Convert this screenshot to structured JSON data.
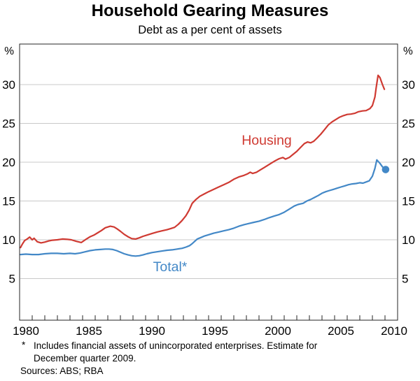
{
  "chart": {
    "title": "Household Gearing Measures",
    "subtitle": "Debt as a per cent of assets",
    "unit_left": "%",
    "unit_right": "%"
  },
  "chart_data": {
    "type": "line",
    "title": "Household Gearing Measures",
    "subtitle": "Debt as a per cent of assets",
    "ylabel": "%",
    "x_range": [
      1980,
      2010
    ],
    "ylim": [
      0,
      35
    ],
    "y_gridlines": [
      5,
      10,
      15,
      20,
      25,
      30
    ],
    "x_tick_labels": [
      "1980",
      "1985",
      "1990",
      "1995",
      "2000",
      "2005",
      "2010"
    ],
    "grid": true,
    "legend_position": "inline-labels",
    "series": [
      {
        "name": "Housing",
        "color": "#cf3a32",
        "points": [
          [
            1980.07,
            9.0
          ],
          [
            1980.2,
            9.4
          ],
          [
            1980.4,
            9.9
          ],
          [
            1980.6,
            10.1
          ],
          [
            1980.8,
            10.35
          ],
          [
            1981.0,
            10.0
          ],
          [
            1981.15,
            10.2
          ],
          [
            1981.4,
            9.75
          ],
          [
            1981.7,
            9.6
          ],
          [
            1982.0,
            9.7
          ],
          [
            1982.3,
            9.85
          ],
          [
            1982.6,
            9.95
          ],
          [
            1983.0,
            10.0
          ],
          [
            1983.4,
            10.1
          ],
          [
            1983.8,
            10.05
          ],
          [
            1984.1,
            10.0
          ],
          [
            1984.5,
            9.8
          ],
          [
            1984.9,
            9.65
          ],
          [
            1985.3,
            10.1
          ],
          [
            1985.6,
            10.4
          ],
          [
            1985.9,
            10.6
          ],
          [
            1986.2,
            10.9
          ],
          [
            1986.5,
            11.2
          ],
          [
            1986.8,
            11.55
          ],
          [
            1987.0,
            11.65
          ],
          [
            1987.2,
            11.75
          ],
          [
            1987.5,
            11.65
          ],
          [
            1987.7,
            11.45
          ],
          [
            1988.0,
            11.1
          ],
          [
            1988.3,
            10.7
          ],
          [
            1988.6,
            10.4
          ],
          [
            1988.9,
            10.15
          ],
          [
            1989.2,
            10.1
          ],
          [
            1989.5,
            10.25
          ],
          [
            1989.8,
            10.45
          ],
          [
            1990.1,
            10.6
          ],
          [
            1990.5,
            10.8
          ],
          [
            1990.9,
            11.0
          ],
          [
            1991.3,
            11.15
          ],
          [
            1991.7,
            11.3
          ],
          [
            1992.0,
            11.45
          ],
          [
            1992.3,
            11.6
          ],
          [
            1992.6,
            12.0
          ],
          [
            1992.9,
            12.5
          ],
          [
            1993.2,
            13.1
          ],
          [
            1993.45,
            13.8
          ],
          [
            1993.7,
            14.7
          ],
          [
            1994.0,
            15.2
          ],
          [
            1994.3,
            15.6
          ],
          [
            1994.7,
            15.95
          ],
          [
            1995.0,
            16.2
          ],
          [
            1995.4,
            16.5
          ],
          [
            1995.8,
            16.8
          ],
          [
            1996.2,
            17.1
          ],
          [
            1996.6,
            17.4
          ],
          [
            1997.0,
            17.8
          ],
          [
            1997.4,
            18.1
          ],
          [
            1997.8,
            18.3
          ],
          [
            1998.1,
            18.5
          ],
          [
            1998.3,
            18.7
          ],
          [
            1998.5,
            18.55
          ],
          [
            1998.8,
            18.7
          ],
          [
            1999.1,
            19.0
          ],
          [
            1999.4,
            19.3
          ],
          [
            1999.7,
            19.6
          ],
          [
            2000.0,
            19.9
          ],
          [
            2000.3,
            20.2
          ],
          [
            2000.6,
            20.45
          ],
          [
            2000.9,
            20.6
          ],
          [
            2001.1,
            20.4
          ],
          [
            2001.4,
            20.6
          ],
          [
            2001.7,
            21.0
          ],
          [
            2002.0,
            21.4
          ],
          [
            2002.3,
            21.9
          ],
          [
            2002.6,
            22.4
          ],
          [
            2002.85,
            22.6
          ],
          [
            2003.1,
            22.5
          ],
          [
            2003.35,
            22.7
          ],
          [
            2003.6,
            23.1
          ],
          [
            2003.9,
            23.6
          ],
          [
            2004.2,
            24.2
          ],
          [
            2004.5,
            24.8
          ],
          [
            2004.8,
            25.2
          ],
          [
            2005.1,
            25.5
          ],
          [
            2005.4,
            25.8
          ],
          [
            2005.7,
            26.0
          ],
          [
            2006.0,
            26.15
          ],
          [
            2006.3,
            26.2
          ],
          [
            2006.6,
            26.3
          ],
          [
            2006.9,
            26.5
          ],
          [
            2007.2,
            26.6
          ],
          [
            2007.5,
            26.65
          ],
          [
            2007.8,
            26.9
          ],
          [
            2008.0,
            27.3
          ],
          [
            2008.2,
            28.4
          ],
          [
            2008.3,
            29.6
          ],
          [
            2008.45,
            31.2
          ],
          [
            2008.6,
            30.9
          ],
          [
            2008.8,
            30.0
          ],
          [
            2008.95,
            29.4
          ]
        ]
      },
      {
        "name": "Total*",
        "color": "#4388c7",
        "points": [
          [
            1980.07,
            8.1
          ],
          [
            1980.5,
            8.15
          ],
          [
            1981.0,
            8.1
          ],
          [
            1981.5,
            8.1
          ],
          [
            1982.0,
            8.2
          ],
          [
            1982.5,
            8.25
          ],
          [
            1983.0,
            8.25
          ],
          [
            1983.5,
            8.2
          ],
          [
            1984.0,
            8.25
          ],
          [
            1984.4,
            8.2
          ],
          [
            1984.8,
            8.3
          ],
          [
            1985.2,
            8.45
          ],
          [
            1985.6,
            8.6
          ],
          [
            1986.0,
            8.7
          ],
          [
            1986.4,
            8.75
          ],
          [
            1986.8,
            8.8
          ],
          [
            1987.1,
            8.8
          ],
          [
            1987.4,
            8.75
          ],
          [
            1987.7,
            8.6
          ],
          [
            1988.0,
            8.4
          ],
          [
            1988.3,
            8.2
          ],
          [
            1988.6,
            8.05
          ],
          [
            1988.9,
            7.95
          ],
          [
            1989.2,
            7.9
          ],
          [
            1989.5,
            7.95
          ],
          [
            1989.8,
            8.05
          ],
          [
            1990.1,
            8.2
          ],
          [
            1990.5,
            8.35
          ],
          [
            1990.9,
            8.45
          ],
          [
            1991.3,
            8.55
          ],
          [
            1991.7,
            8.65
          ],
          [
            1992.1,
            8.7
          ],
          [
            1992.5,
            8.8
          ],
          [
            1992.9,
            8.9
          ],
          [
            1993.2,
            9.05
          ],
          [
            1993.5,
            9.25
          ],
          [
            1993.7,
            9.5
          ],
          [
            1993.9,
            9.8
          ],
          [
            1994.1,
            10.1
          ],
          [
            1994.4,
            10.3
          ],
          [
            1994.7,
            10.5
          ],
          [
            1995.0,
            10.65
          ],
          [
            1995.4,
            10.85
          ],
          [
            1995.8,
            11.0
          ],
          [
            1996.2,
            11.15
          ],
          [
            1996.6,
            11.3
          ],
          [
            1997.0,
            11.5
          ],
          [
            1997.4,
            11.75
          ],
          [
            1997.8,
            11.95
          ],
          [
            1998.2,
            12.1
          ],
          [
            1998.6,
            12.25
          ],
          [
            1999.0,
            12.4
          ],
          [
            1999.4,
            12.6
          ],
          [
            1999.8,
            12.85
          ],
          [
            2000.2,
            13.05
          ],
          [
            2000.6,
            13.25
          ],
          [
            2001.0,
            13.55
          ],
          [
            2001.4,
            13.95
          ],
          [
            2001.8,
            14.35
          ],
          [
            2002.1,
            14.55
          ],
          [
            2002.5,
            14.7
          ],
          [
            2002.8,
            15.0
          ],
          [
            2003.1,
            15.2
          ],
          [
            2003.4,
            15.45
          ],
          [
            2003.7,
            15.7
          ],
          [
            2004.0,
            16.0
          ],
          [
            2004.3,
            16.2
          ],
          [
            2004.6,
            16.35
          ],
          [
            2004.9,
            16.5
          ],
          [
            2005.2,
            16.65
          ],
          [
            2005.5,
            16.8
          ],
          [
            2005.8,
            16.95
          ],
          [
            2006.1,
            17.1
          ],
          [
            2006.4,
            17.2
          ],
          [
            2006.7,
            17.25
          ],
          [
            2007.0,
            17.35
          ],
          [
            2007.25,
            17.3
          ],
          [
            2007.5,
            17.45
          ],
          [
            2007.75,
            17.6
          ],
          [
            2008.0,
            18.2
          ],
          [
            2008.2,
            19.2
          ],
          [
            2008.35,
            20.3
          ],
          [
            2008.6,
            19.85
          ],
          [
            2008.8,
            19.4
          ]
        ]
      }
    ],
    "estimate_point": {
      "series": "Total*",
      "x": 2009.05,
      "value": 19.05,
      "color": "#4388c7",
      "note": "Estimate for December quarter 2009"
    }
  },
  "footnote": {
    "star": "*",
    "line1": "Includes financial assets of unincorporated enterprises. Estimate for",
    "line2": "December quarter 2009.",
    "sources": "Sources: ABS; RBA"
  }
}
